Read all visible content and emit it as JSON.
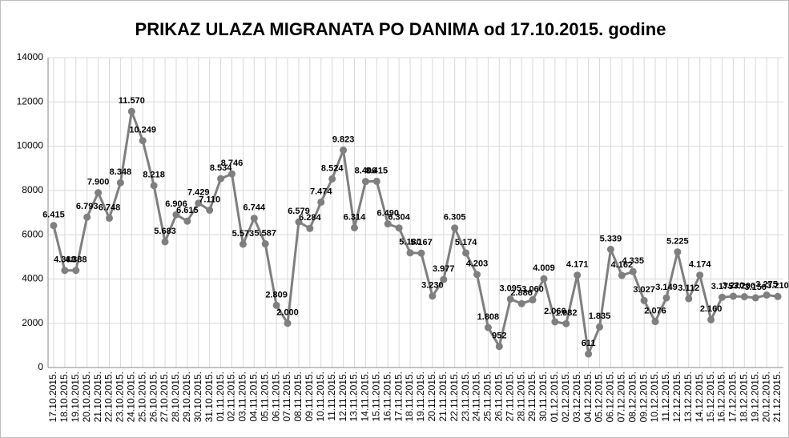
{
  "chart_data": {
    "type": "line",
    "title": "PRIKAZ ULAZA MIGRANATA PO DANIMA od 17.10.2015. godine",
    "categories": [
      "17.10.2015.",
      "18.10.2015.",
      "19.10.2015.",
      "20.10.2015.",
      "21.10.2015.",
      "22.10.2015.",
      "23.10.2015.",
      "24.10.2015.",
      "25.10.2015.",
      "26.10.2015.",
      "27.10.2015.",
      "28.10.2015.",
      "29.10.2015.",
      "30.10.2015.",
      "31.10.2015.",
      "01.11.2015.",
      "02.11.2015.",
      "03.11.2015.",
      "04.11.2015.",
      "05.11.2015.",
      "06.11.2015.",
      "07.11.2015.",
      "08.11.2015.",
      "09.11.2015.",
      "10.11.2015.",
      "11.11.2015.",
      "12.11.2015.",
      "13.11.2015.",
      "14.11.2015.",
      "15.11.2015.",
      "16.11.2015.",
      "17.11.2015.",
      "18.11.2015.",
      "19.11.2015.",
      "20.11.2015.",
      "21.11.2015.",
      "22.11.2015.",
      "23.11.2015.",
      "24.11.2015.",
      "25.11.2015.",
      "26.11.2015.",
      "27.11.2015.",
      "28.11.2015.",
      "29.11.2015.",
      "30.11.2015.",
      "01.12.2015.",
      "02.12.2015.",
      "03.12.2015.",
      "04.12.2015.",
      "05.12.2015.",
      "06.12.2015.",
      "07.12.2015.",
      "08.12.2015.",
      "09.12.2015.",
      "10.12.2015.",
      "11.12.2015.",
      "12.12.2015.",
      "13.12.2015.",
      "14.12.2015.",
      "15.12.2015.",
      "16.12.2015.",
      "17.12.2015.",
      "18.12.2015.",
      "19.12.2015.",
      "20.12.2015.",
      "21.12.2015."
    ],
    "values": [
      6415,
      4388,
      4388,
      6793,
      7900,
      6748,
      8348,
      11570,
      10249,
      8218,
      5683,
      6906,
      6615,
      7429,
      7110,
      8534,
      8746,
      5573,
      6744,
      5587,
      2809,
      2000,
      6579,
      6284,
      7474,
      8524,
      9823,
      6314,
      8406,
      8415,
      6490,
      6304,
      5180,
      5167,
      3230,
      3977,
      6305,
      5174,
      4203,
      1808,
      952,
      3095,
      2886,
      3060,
      4009,
      2066,
      1982,
      4171,
      611,
      1835,
      5339,
      4162,
      4335,
      3027,
      2076,
      3149,
      5225,
      3112,
      4174,
      2160,
      3175,
      3220,
      3200,
      3150,
      3275,
      3210
    ],
    "value_labels": [
      "6.415",
      "4.388",
      "4.388",
      "6.793",
      "7.900",
      "6.748",
      "8.348",
      "11.570",
      "10.249",
      "8.218",
      "5.683",
      "6.906",
      "6.615",
      "7.429",
      "7.110",
      "8.534",
      "8.746",
      "5.573",
      "6.744",
      "5.587",
      "2.809",
      "2.000",
      "6.579",
      "6.284",
      "7.474",
      "8.524",
      "9.823",
      "6.314",
      "8.406",
      "8.415",
      "6.490",
      "6.304",
      "5.180",
      "5.167",
      "3.230",
      "3.977",
      "6.305",
      "5.174",
      "4.203",
      "1.808",
      "952",
      "3.095",
      "2.886",
      "3.060",
      "4.009",
      "2.066",
      "1.982",
      "4.171",
      "611",
      "1.835",
      "5.339",
      "4.162",
      "4.335",
      "3.027",
      "2.076",
      "3.149",
      "5.225",
      "3.112",
      "4.174",
      "2.160",
      "3.175",
      "3.220",
      "3.200",
      "3.150",
      "3.275",
      "3.210"
    ],
    "color": "#7f7f7f",
    "ylim": [
      0,
      14000
    ],
    "yticks": [
      0,
      2000,
      4000,
      6000,
      8000,
      10000,
      12000,
      14000
    ],
    "grid": true
  }
}
